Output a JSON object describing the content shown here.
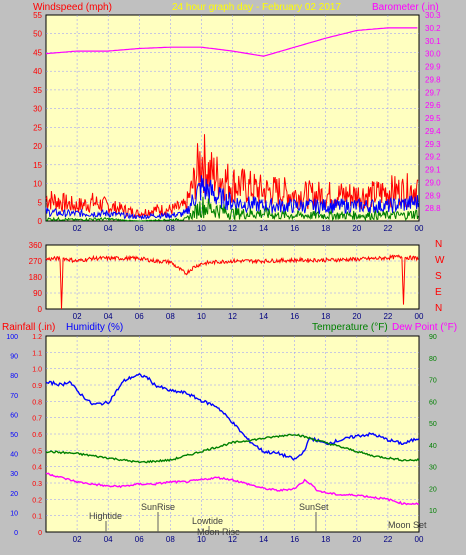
{
  "header": {
    "left_title": "Windspeed (mph)",
    "center_title": "24 hour graph day - February 02 2017",
    "right_title": "Barometer (.in)"
  },
  "x_ticks": [
    "02",
    "04",
    "06",
    "08",
    "10",
    "12",
    "14",
    "16",
    "18",
    "20",
    "22",
    "00"
  ],
  "colors": {
    "background": "#c0c0c0",
    "plot_bg": "#ffffc0",
    "grid": "#9090ff",
    "barometer": "#ff00ff",
    "gust": "#ff0000",
    "avg_wind": "#0000ff",
    "low_wind": "#008000",
    "direction": "#ff0000",
    "humidity": "#0000ff",
    "temperature": "#008000",
    "dewpoint": "#ff00ff",
    "rainfall": "#ff0000",
    "title_yellow": "#ffff00"
  },
  "chart_data": [
    {
      "type": "line",
      "name": "wind-barometer",
      "x_range": [
        0,
        24
      ],
      "y_left": {
        "label": "Windspeed (mph)",
        "range": [
          0,
          55
        ],
        "ticks": [
          0,
          5,
          10,
          15,
          20,
          25,
          30,
          35,
          40,
          45,
          50,
          55
        ]
      },
      "y_right": {
        "label": "Barometer (.in)",
        "range": [
          28.7,
          30.3
        ],
        "ticks": [
          28.8,
          28.9,
          29.0,
          29.1,
          29.2,
          29.3,
          29.4,
          29.5,
          29.6,
          29.7,
          29.8,
          29.9,
          30.0,
          30.1,
          30.2,
          30.3
        ]
      },
      "series": [
        {
          "name": "Barometer",
          "axis": "right",
          "color": "#ff00ff",
          "x": [
            0,
            2,
            4,
            6,
            8,
            10,
            12,
            14,
            16,
            18,
            20,
            22,
            24
          ],
          "y": [
            30.0,
            30.02,
            30.02,
            30.04,
            30.05,
            30.05,
            30.02,
            29.98,
            30.05,
            30.12,
            30.18,
            30.2,
            30.2
          ]
        },
        {
          "name": "Gust",
          "axis": "left",
          "color": "#ff0000",
          "x": [
            0,
            1,
            2,
            3,
            4,
            5,
            6,
            7,
            8,
            9,
            9.5,
            10,
            10.5,
            11,
            12,
            13,
            14,
            15,
            16,
            17,
            18,
            19,
            20,
            21,
            22,
            23,
            24
          ],
          "y": [
            6,
            5,
            4,
            5,
            4,
            3,
            2,
            3,
            3,
            4,
            10,
            17,
            13,
            12,
            10,
            9,
            8,
            8,
            7,
            7,
            7,
            7,
            7,
            7,
            8,
            8,
            9
          ]
        },
        {
          "name": "Average",
          "axis": "left",
          "color": "#0000ff",
          "x": [
            0,
            1,
            2,
            3,
            4,
            5,
            6,
            7,
            8,
            9,
            9.5,
            10,
            10.5,
            11,
            12,
            13,
            14,
            15,
            16,
            17,
            18,
            19,
            20,
            21,
            22,
            23,
            24
          ],
          "y": [
            2.5,
            2,
            2,
            2,
            2,
            1.5,
            1,
            1.5,
            1.5,
            2,
            6,
            9,
            8,
            6.5,
            5,
            4.5,
            4,
            4,
            4,
            4,
            4,
            4,
            4,
            4,
            4,
            4.5,
            5
          ]
        },
        {
          "name": "Low",
          "axis": "left",
          "color": "#008000",
          "x": [
            0,
            1,
            2,
            3,
            4,
            5,
            6,
            7,
            8,
            9,
            9.5,
            10,
            10.5,
            11,
            12,
            13,
            14,
            15,
            16,
            17,
            18,
            19,
            20,
            21,
            22,
            23,
            24
          ],
          "y": [
            0.5,
            0.5,
            0.3,
            0.5,
            0.5,
            0.2,
            0,
            0.2,
            0.3,
            0.5,
            2,
            4,
            3.5,
            3,
            2,
            2,
            2,
            1.5,
            1.5,
            1.5,
            1.5,
            1.5,
            1.5,
            1.5,
            1.5,
            1.5,
            2
          ]
        }
      ]
    },
    {
      "type": "line",
      "name": "wind-direction",
      "x_range": [
        0,
        24
      ],
      "y_left": {
        "range": [
          0,
          360
        ],
        "ticks": [
          0,
          90,
          180,
          270,
          360
        ]
      },
      "y_right_labels": [
        "N",
        "W",
        "S",
        "E",
        "N"
      ],
      "series": [
        {
          "name": "Direction",
          "color": "#ff0000",
          "x": [
            0,
            0.9,
            1.0,
            1.1,
            2,
            3,
            4,
            5,
            6,
            7,
            8,
            8.5,
            9,
            9.5,
            10,
            11,
            12,
            14,
            16,
            18,
            20,
            21.5,
            22.9,
            23.0,
            23.1,
            24
          ],
          "y": [
            280,
            285,
            0,
            285,
            270,
            285,
            285,
            285,
            285,
            270,
            265,
            230,
            200,
            235,
            255,
            265,
            270,
            270,
            275,
            275,
            280,
            285,
            295,
            25,
            290,
            285
          ]
        }
      ]
    },
    {
      "type": "line",
      "name": "temp-humidity-rain",
      "x_range": [
        0,
        24
      ],
      "y_far_left": {
        "label": "Humidity (%)",
        "range": [
          0,
          100
        ],
        "ticks": [
          0,
          10,
          20,
          30,
          40,
          50,
          60,
          70,
          80,
          90,
          100
        ]
      },
      "y_left": {
        "label": "Rainfall (.in)",
        "range": [
          0,
          1.2
        ],
        "ticks": [
          0,
          0.1,
          0.2,
          0.3,
          0.4,
          0.5,
          0.6,
          0.7,
          0.8,
          0.9,
          1.0,
          1.1,
          1.2
        ]
      },
      "y_right": {
        "label_temp": "Temperature (°F)",
        "label_dew": "Dew Point (°F)",
        "range": [
          0,
          90
        ],
        "ticks": [
          10,
          20,
          30,
          40,
          50,
          60,
          70,
          80,
          90
        ]
      },
      "series": [
        {
          "name": "Humidity",
          "axis": "far_left",
          "color": "#0000ff",
          "x": [
            0,
            0.5,
            1,
            1.5,
            2,
            3,
            4,
            5,
            5.5,
            6,
            6.5,
            7,
            8,
            9,
            10,
            11,
            12,
            13,
            14,
            15,
            16,
            16.5,
            17,
            18,
            19,
            20,
            21,
            22,
            23,
            24
          ],
          "y": [
            76,
            76,
            75,
            77,
            72,
            65,
            66,
            77,
            79,
            80,
            79,
            75,
            72,
            71,
            67,
            64,
            56,
            47,
            41,
            40,
            37,
            40,
            48,
            45,
            47,
            49,
            50,
            47,
            45,
            48
          ]
        },
        {
          "name": "Temperature",
          "axis": "right",
          "color": "#008000",
          "x": [
            0,
            1,
            2,
            3,
            4,
            5,
            6,
            7,
            8,
            9,
            10,
            11,
            12,
            13,
            14,
            15,
            16,
            17,
            18,
            19,
            20,
            21,
            22,
            23,
            24
          ],
          "y": [
            37,
            36.5,
            36,
            35,
            34,
            33,
            32,
            32.5,
            33,
            35,
            37,
            39,
            41,
            42,
            43,
            44,
            45,
            43,
            41,
            39,
            37,
            35,
            34,
            33,
            33
          ]
        },
        {
          "name": "Dew Point",
          "axis": "right",
          "color": "#ff00ff",
          "x": [
            0,
            1,
            2,
            3,
            4,
            5,
            6,
            7,
            8,
            9,
            10,
            11,
            12,
            13,
            14,
            15,
            16,
            16.7,
            17.5,
            18,
            19,
            20,
            21,
            22,
            23,
            24
          ],
          "y": [
            27,
            25,
            23,
            22,
            21,
            21,
            22,
            22,
            23,
            23,
            24,
            25,
            24,
            22,
            20,
            19,
            20,
            24,
            19,
            18,
            17,
            17,
            16,
            15,
            13,
            13
          ]
        }
      ],
      "annotations": [
        "Hightide",
        "SunRise",
        "Lowtide",
        "Moon Rise",
        "SunSet",
        "Moon Set"
      ]
    }
  ],
  "bottom_header": {
    "rainfall_label": "Rainfall (.in)",
    "humidity_label": "Humidity (%)",
    "temperature_label": "Temperature (°F)",
    "dewpoint_label": "Dew Point (°F)"
  }
}
